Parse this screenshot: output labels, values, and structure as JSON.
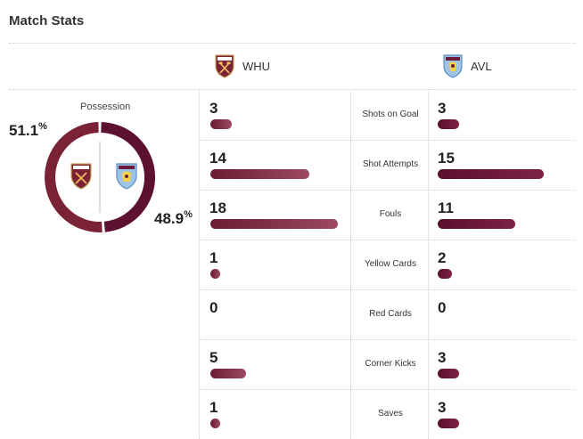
{
  "header": {
    "title": "Match Stats"
  },
  "teams": {
    "home": {
      "abbr": "WHU",
      "crest": "west-ham-crest",
      "color": "#7a2336"
    },
    "away": {
      "abbr": "AVL",
      "crest": "aston-villa-crest",
      "color": "#5c1130"
    }
  },
  "possession": {
    "label": "Possession",
    "home_value": "51.1",
    "away_value": "48.9",
    "unit": "%",
    "home_share": 0.511,
    "away_share": 0.489
  },
  "stats": [
    {
      "label": "Shots on Goal",
      "home": 3,
      "away": 3
    },
    {
      "label": "Shot Attempts",
      "home": 14,
      "away": 15
    },
    {
      "label": "Fouls",
      "home": 18,
      "away": 11
    },
    {
      "label": "Yellow Cards",
      "home": 1,
      "away": 2
    },
    {
      "label": "Red Cards",
      "home": 0,
      "away": 0
    },
    {
      "label": "Corner Kicks",
      "home": 5,
      "away": 3
    },
    {
      "label": "Saves",
      "home": 1,
      "away": 3
    }
  ]
}
